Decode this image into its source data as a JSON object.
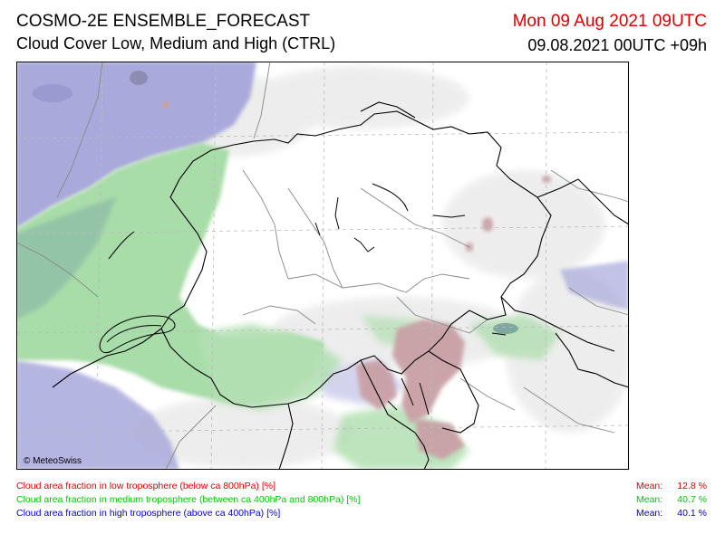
{
  "header": {
    "title": "COSMO-2E ENSEMBLE_FORECAST",
    "subtitle": "Cloud Cover Low, Medium and High (CTRL)",
    "valid_time": "Mon 09 Aug 2021 09UTC",
    "run_time": "09.08.2021 00UTC +09h"
  },
  "map": {
    "copyright": "© MeteoSwiss",
    "colors": {
      "low_cloud": "#c9a0a6",
      "medium_cloud": "#a8dca8",
      "high_cloud": "#a9a9dc",
      "borders": "#000000",
      "graticule": "#bbbbbb"
    }
  },
  "legend": [
    {
      "label": "Cloud area fraction in low troposphere (below ca 800hPa) [%]",
      "color": "#e00000",
      "mean_label": "Mean:",
      "mean_value": "12.8 %"
    },
    {
      "label": "Cloud area fraction in medium troposphere (between ca 400hPa and 800hPa) [%]",
      "color": "#00cc00",
      "mean_label": "Mean:",
      "mean_value": "40.7 %"
    },
    {
      "label": "Cloud area fraction in high troposphere (above ca 400hPa) [%]",
      "color": "#0000dd",
      "mean_label": "Mean:",
      "mean_value": "40.1 %"
    }
  ]
}
